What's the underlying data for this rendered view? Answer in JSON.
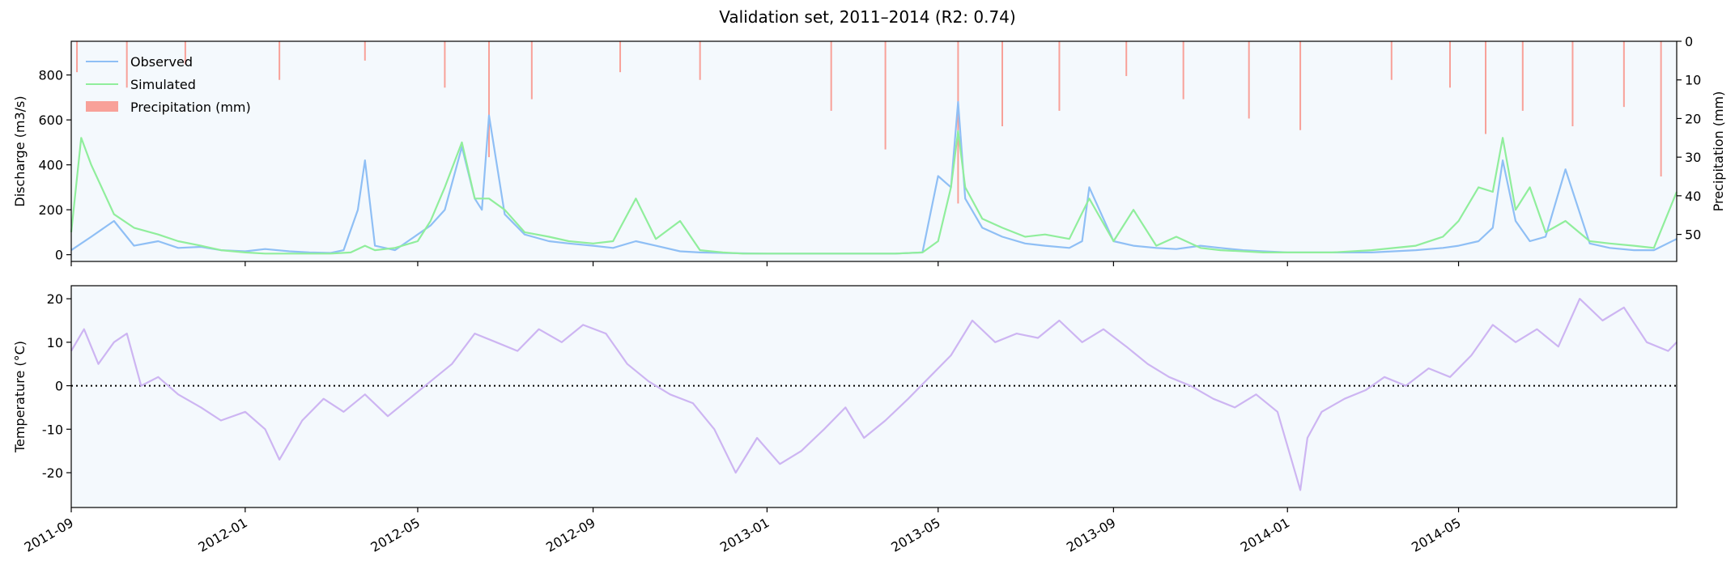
{
  "title": "Validation set, 2011–2014 (R2: 0.74)",
  "chart_data": [
    {
      "type": "line",
      "panel": "discharge-precipitation",
      "ylabel": "Discharge (m3/s)",
      "ylabel_right": "Precipitation (mm)",
      "ylim": [
        -30,
        950
      ],
      "ylim_right_inverted": [
        0,
        57
      ],
      "yticks": [
        0,
        200,
        400,
        600,
        800
      ],
      "yticks_right": [
        0,
        10,
        20,
        30,
        40,
        50
      ],
      "legend": [
        "Observed",
        "Simulated",
        "Precipitation (mm)"
      ],
      "legend_position": "upper-left",
      "colors": {
        "observed": "#8fbff5",
        "simulated": "#90ee9c",
        "precipitation": "#f8a199",
        "background": "#f4f9fd"
      },
      "x_range": [
        "2011-09-01",
        "2014-10-01"
      ],
      "series": [
        {
          "name": "Observed",
          "x": [
            "2011-09-01",
            "2011-09-15",
            "2011-10-01",
            "2011-10-15",
            "2011-11-01",
            "2011-11-15",
            "2011-12-01",
            "2011-12-15",
            "2012-01-01",
            "2012-01-15",
            "2012-02-01",
            "2012-02-15",
            "2012-03-01",
            "2012-03-10",
            "2012-03-20",
            "2012-03-25",
            "2012-04-01",
            "2012-04-15",
            "2012-05-01",
            "2012-05-10",
            "2012-05-20",
            "2012-06-01",
            "2012-06-10",
            "2012-06-15",
            "2012-06-20",
            "2012-07-01",
            "2012-07-15",
            "2012-08-01",
            "2012-08-15",
            "2012-09-01",
            "2012-09-15",
            "2012-10-01",
            "2012-10-15",
            "2012-11-01",
            "2012-11-15",
            "2012-12-01",
            "2012-12-15",
            "2013-01-01",
            "2013-02-01",
            "2013-03-01",
            "2013-04-01",
            "2013-04-20",
            "2013-05-01",
            "2013-05-10",
            "2013-05-15",
            "2013-05-20",
            "2013-06-01",
            "2013-06-15",
            "2013-07-01",
            "2013-07-15",
            "2013-08-01",
            "2013-08-10",
            "2013-08-15",
            "2013-09-01",
            "2013-09-15",
            "2013-10-01",
            "2013-10-15",
            "2013-11-01",
            "2013-11-15",
            "2013-12-01",
            "2013-12-15",
            "2014-01-01",
            "2014-02-01",
            "2014-03-01",
            "2014-04-01",
            "2014-04-20",
            "2014-05-01",
            "2014-05-15",
            "2014-05-25",
            "2014-06-01",
            "2014-06-10",
            "2014-06-20",
            "2014-07-01",
            "2014-07-15",
            "2014-08-01",
            "2014-08-15",
            "2014-09-01",
            "2014-09-15",
            "2014-10-01"
          ],
          "values": [
            20,
            80,
            150,
            40,
            60,
            30,
            35,
            20,
            15,
            25,
            15,
            10,
            8,
            20,
            200,
            420,
            40,
            20,
            90,
            130,
            200,
            480,
            250,
            200,
            620,
            180,
            90,
            60,
            50,
            40,
            30,
            60,
            40,
            15,
            10,
            8,
            6,
            5,
            5,
            5,
            5,
            10,
            350,
            300,
            680,
            250,
            120,
            80,
            50,
            40,
            30,
            60,
            300,
            60,
            40,
            30,
            25,
            40,
            30,
            20,
            15,
            10,
            10,
            10,
            20,
            30,
            40,
            60,
            120,
            420,
            150,
            60,
            80,
            380,
            50,
            30,
            20,
            20,
            70
          ]
        },
        {
          "name": "Simulated",
          "x": [
            "2011-09-01",
            "2011-09-08",
            "2011-09-15",
            "2011-10-01",
            "2011-10-15",
            "2011-11-01",
            "2011-11-15",
            "2011-12-01",
            "2011-12-15",
            "2012-01-01",
            "2012-01-15",
            "2012-02-01",
            "2012-02-15",
            "2012-03-01",
            "2012-03-15",
            "2012-03-25",
            "2012-04-01",
            "2012-04-15",
            "2012-05-01",
            "2012-05-10",
            "2012-05-20",
            "2012-06-01",
            "2012-06-10",
            "2012-06-20",
            "2012-07-01",
            "2012-07-15",
            "2012-08-01",
            "2012-08-15",
            "2012-09-01",
            "2012-09-15",
            "2012-10-01",
            "2012-10-15",
            "2012-11-01",
            "2012-11-15",
            "2012-12-01",
            "2012-12-15",
            "2013-01-01",
            "2013-02-01",
            "2013-03-01",
            "2013-04-01",
            "2013-04-20",
            "2013-05-01",
            "2013-05-10",
            "2013-05-15",
            "2013-05-20",
            "2013-06-01",
            "2013-06-15",
            "2013-07-01",
            "2013-07-15",
            "2013-08-01",
            "2013-08-15",
            "2013-09-01",
            "2013-09-15",
            "2013-10-01",
            "2013-10-15",
            "2013-11-01",
            "2013-11-15",
            "2013-12-01",
            "2013-12-15",
            "2014-01-01",
            "2014-02-01",
            "2014-03-01",
            "2014-04-01",
            "2014-04-20",
            "2014-05-01",
            "2014-05-15",
            "2014-05-25",
            "2014-06-01",
            "2014-06-10",
            "2014-06-20",
            "2014-07-01",
            "2014-07-15",
            "2014-08-01",
            "2014-08-15",
            "2014-09-01",
            "2014-09-15",
            "2014-10-01"
          ],
          "values": [
            100,
            520,
            400,
            180,
            120,
            90,
            60,
            40,
            20,
            10,
            5,
            5,
            5,
            5,
            10,
            40,
            20,
            30,
            60,
            150,
            300,
            500,
            250,
            250,
            200,
            100,
            80,
            60,
            50,
            60,
            250,
            70,
            150,
            20,
            10,
            5,
            5,
            5,
            5,
            5,
            10,
            60,
            300,
            550,
            300,
            160,
            120,
            80,
            90,
            70,
            250,
            60,
            200,
            40,
            80,
            30,
            20,
            15,
            10,
            10,
            10,
            20,
            40,
            80,
            150,
            300,
            280,
            520,
            200,
            300,
            100,
            150,
            60,
            50,
            40,
            30,
            280
          ]
        }
      ],
      "precipitation_mm": {
        "x": [
          "2011-09-05",
          "2011-10-10",
          "2011-11-20",
          "2012-01-25",
          "2012-03-25",
          "2012-05-20",
          "2012-06-20",
          "2012-07-20",
          "2012-09-20",
          "2012-11-15",
          "2013-02-15",
          "2013-03-25",
          "2013-05-15",
          "2013-06-15",
          "2013-07-25",
          "2013-09-10",
          "2013-10-20",
          "2013-12-05",
          "2014-01-10",
          "2014-03-15",
          "2014-04-25",
          "2014-05-20",
          "2014-06-15",
          "2014-07-20",
          "2014-08-25",
          "2014-09-20"
        ],
        "values": [
          8,
          12,
          6,
          10,
          5,
          12,
          30,
          15,
          8,
          10,
          18,
          28,
          42,
          22,
          18,
          9,
          15,
          20,
          23,
          10,
          12,
          24,
          18,
          22,
          17,
          35
        ]
      }
    },
    {
      "type": "line",
      "panel": "temperature",
      "ylabel": "Temperature (°C)",
      "ylim": [
        -28,
        23
      ],
      "yticks": [
        -20,
        -10,
        0,
        10,
        20
      ],
      "reference_line": 0,
      "colors": {
        "temperature": "#cdb5f2",
        "background": "#f4f9fd"
      },
      "x_range": [
        "2011-09-01",
        "2014-10-01"
      ],
      "xticks": [
        "2011-09",
        "2012-01",
        "2012-05",
        "2012-09",
        "2013-01",
        "2013-05",
        "2013-09",
        "2014-01",
        "2014-05"
      ],
      "series": [
        {
          "name": "Temperature",
          "x": [
            "2011-09-01",
            "2011-09-10",
            "2011-09-20",
            "2011-10-01",
            "2011-10-10",
            "2011-10-20",
            "2011-11-01",
            "2011-11-15",
            "2011-12-01",
            "2011-12-15",
            "2012-01-01",
            "2012-01-15",
            "2012-01-25",
            "2012-02-10",
            "2012-02-25",
            "2012-03-10",
            "2012-03-25",
            "2012-04-10",
            "2012-04-25",
            "2012-05-10",
            "2012-05-25",
            "2012-06-10",
            "2012-06-25",
            "2012-07-10",
            "2012-07-25",
            "2012-08-10",
            "2012-08-25",
            "2012-09-10",
            "2012-09-25",
            "2012-10-10",
            "2012-10-25",
            "2012-11-10",
            "2012-11-25",
            "2012-12-10",
            "2012-12-25",
            "2013-01-10",
            "2013-01-25",
            "2013-02-10",
            "2013-02-25",
            "2013-03-10",
            "2013-03-25",
            "2013-04-10",
            "2013-04-25",
            "2013-05-10",
            "2013-05-25",
            "2013-06-10",
            "2013-06-25",
            "2013-07-10",
            "2013-07-25",
            "2013-08-10",
            "2013-08-25",
            "2013-09-10",
            "2013-09-25",
            "2013-10-10",
            "2013-10-25",
            "2013-11-10",
            "2013-11-25",
            "2013-12-10",
            "2013-12-25",
            "2014-01-10",
            "2014-01-15",
            "2014-01-25",
            "2014-02-10",
            "2014-02-25",
            "2014-03-10",
            "2014-03-25",
            "2014-04-10",
            "2014-04-25",
            "2014-05-10",
            "2014-05-25",
            "2014-06-10",
            "2014-06-25",
            "2014-07-10",
            "2014-07-25",
            "2014-08-10",
            "2014-08-25",
            "2014-09-10",
            "2014-09-25",
            "2014-10-01"
          ],
          "values": [
            8,
            13,
            5,
            10,
            12,
            0,
            2,
            -2,
            -5,
            -8,
            -6,
            -10,
            -17,
            -8,
            -3,
            -6,
            -2,
            -7,
            -3,
            1,
            5,
            12,
            10,
            8,
            13,
            10,
            14,
            12,
            5,
            1,
            -2,
            -4,
            -10,
            -20,
            -12,
            -18,
            -15,
            -10,
            -5,
            -12,
            -8,
            -3,
            2,
            7,
            15,
            10,
            12,
            11,
            15,
            10,
            13,
            9,
            5,
            2,
            0,
            -3,
            -5,
            -2,
            -6,
            -24,
            -12,
            -6,
            -3,
            -1,
            2,
            0,
            4,
            2,
            7,
            14,
            10,
            13,
            9,
            20,
            15,
            18,
            10,
            8,
            10
          ]
        }
      ]
    }
  ]
}
